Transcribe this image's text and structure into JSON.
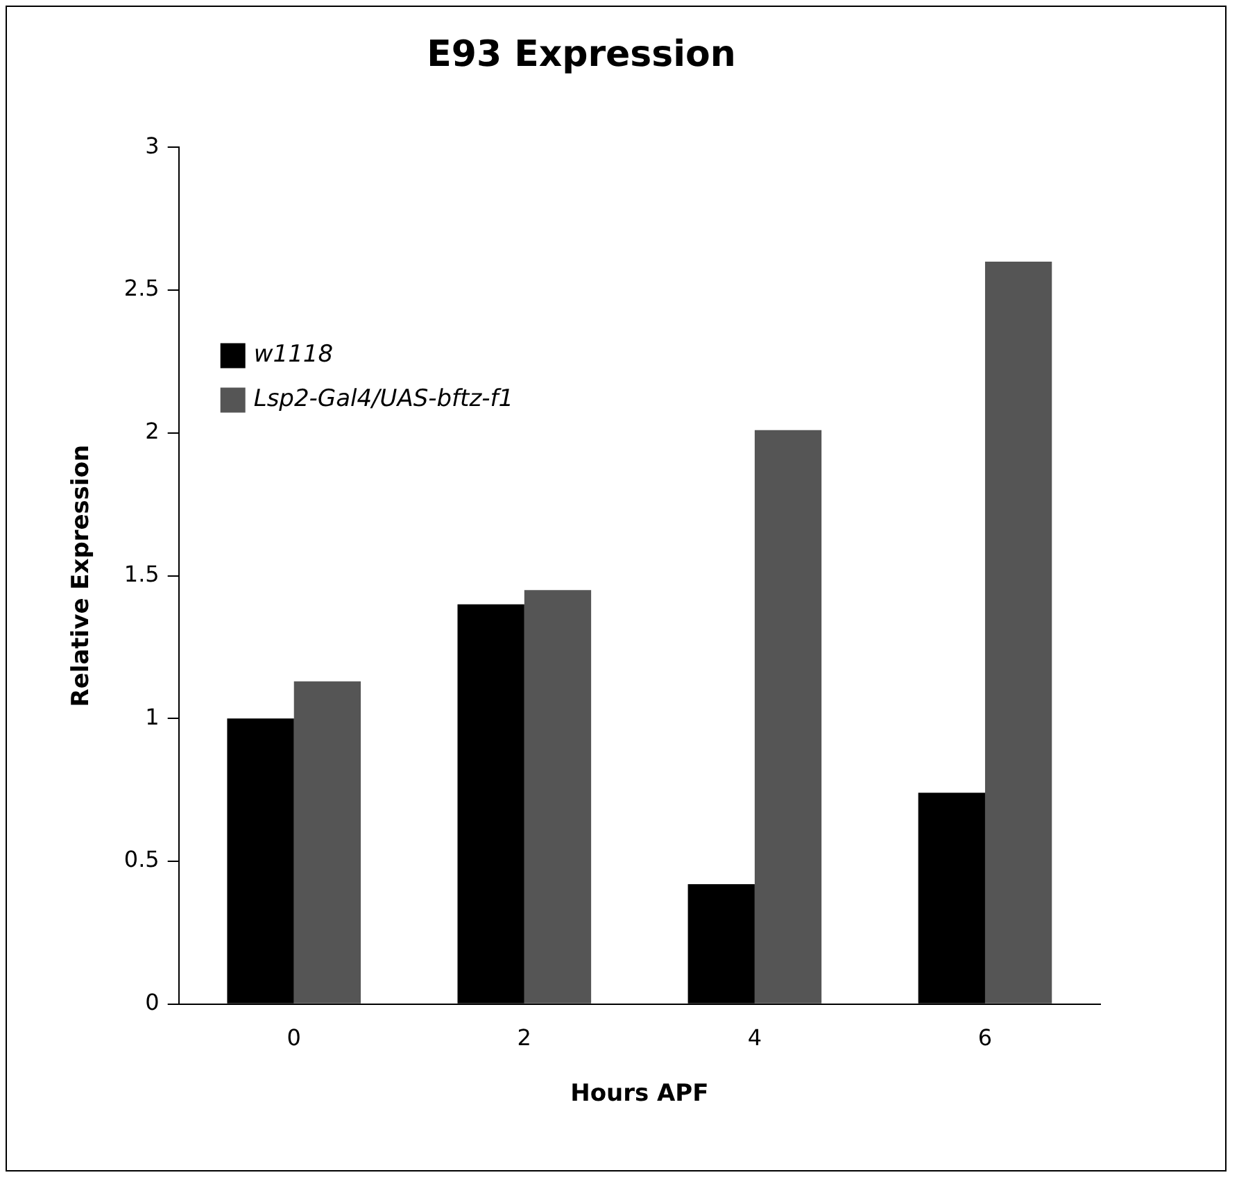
{
  "chart_data": {
    "type": "bar",
    "title": "E93 Expression",
    "xlabel": "Hours APF",
    "ylabel": "Relative Expression",
    "categories": [
      "0",
      "2",
      "4",
      "6"
    ],
    "series": [
      {
        "name": "w1118",
        "color": "#000000",
        "values": [
          1.0,
          1.4,
          0.42,
          0.74
        ]
      },
      {
        "name": "Lsp2-Gal4/UAS-bftz-f1",
        "color": "#555555",
        "values": [
          1.13,
          1.45,
          2.01,
          2.6
        ]
      }
    ],
    "ylim": [
      0,
      3
    ],
    "yticks": [
      0,
      0.5,
      1,
      1.5,
      2,
      2.5,
      3
    ],
    "grid": false,
    "legend": "top left"
  }
}
